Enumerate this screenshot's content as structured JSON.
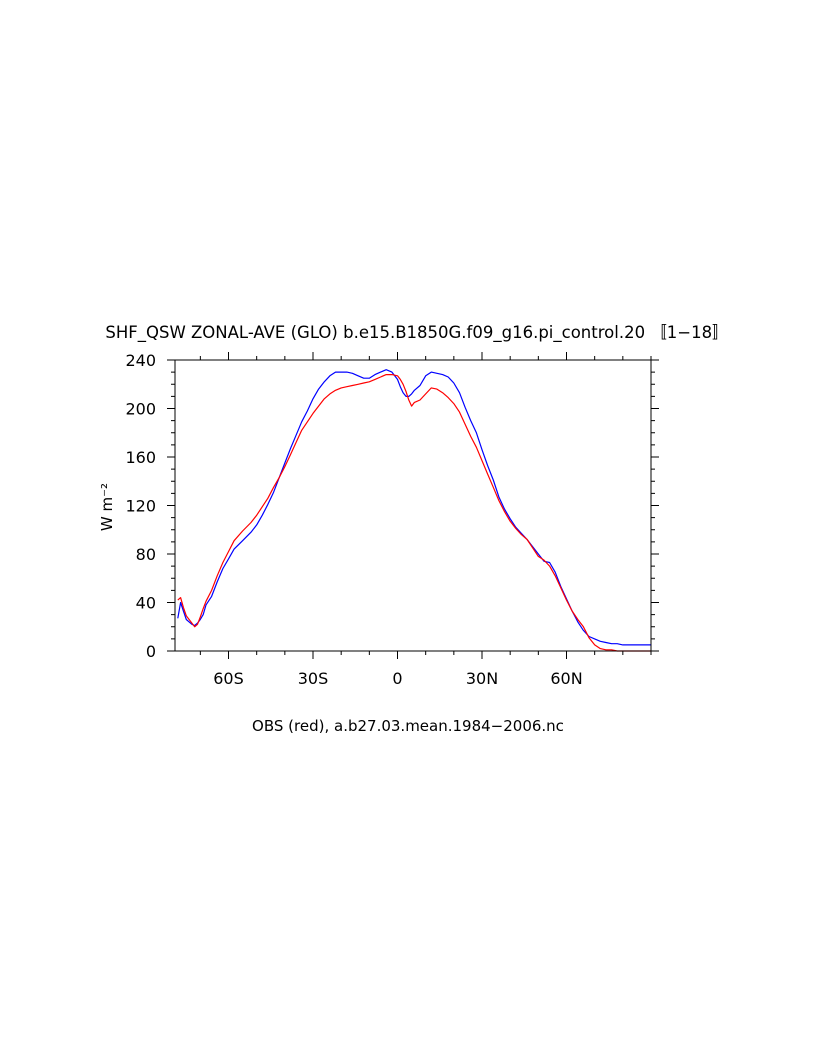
{
  "chart_data": {
    "type": "line",
    "title": "SHF_QSW ZONAL-AVE (GLO) b.e15.B1850G.f09_g16.pi_control.20 〚1−18〛",
    "xlabel": "OBS (red), a.b27.03.mean.1984−2006.nc",
    "ylabel": "W m⁻²",
    "xlim": [
      -79,
      90
    ],
    "ylim": [
      0,
      240
    ],
    "x_ticks": [
      {
        "value": -60,
        "label": "60S"
      },
      {
        "value": -30,
        "label": "30S"
      },
      {
        "value": 0,
        "label": "0"
      },
      {
        "value": 30,
        "label": "30N"
      },
      {
        "value": 60,
        "label": "60N"
      }
    ],
    "y_ticks": [
      {
        "value": 0,
        "label": "0"
      },
      {
        "value": 40,
        "label": "40"
      },
      {
        "value": 80,
        "label": "80"
      },
      {
        "value": 120,
        "label": "120"
      },
      {
        "value": 160,
        "label": "160"
      },
      {
        "value": 200,
        "label": "200"
      },
      {
        "value": 240,
        "label": "240"
      }
    ],
    "x_minor_step": 10,
    "y_minor_step": 10,
    "grid": false,
    "legend": "none",
    "series": [
      {
        "color": "#0000ff",
        "x": [
          -78,
          -77,
          -76,
          -75,
          -74,
          -73,
          -72,
          -71,
          -70,
          -69,
          -68,
          -66,
          -64,
          -62,
          -60,
          -58,
          -55,
          -52,
          -50,
          -48,
          -46,
          -44,
          -42,
          -40,
          -38,
          -36,
          -34,
          -32,
          -30,
          -28,
          -26,
          -24,
          -22,
          -20,
          -18,
          -16,
          -14,
          -12,
          -10,
          -8,
          -6,
          -4,
          -2,
          0,
          1,
          2,
          3,
          4,
          5,
          6,
          8,
          10,
          12,
          14,
          16,
          18,
          20,
          22,
          24,
          26,
          28,
          30,
          32,
          34,
          36,
          38,
          40,
          42,
          44,
          46,
          48,
          50,
          52,
          54,
          56,
          58,
          60,
          62,
          64,
          66,
          68,
          70,
          72,
          74,
          76,
          78,
          80,
          82,
          84,
          86,
          88,
          90
        ],
        "y": [
          27,
          40,
          33,
          26,
          24,
          22,
          21,
          23,
          26,
          30,
          38,
          45,
          57,
          68,
          76,
          84,
          91,
          98,
          104,
          112,
          121,
          131,
          143,
          155,
          167,
          178,
          189,
          198,
          208,
          216,
          222,
          227,
          230,
          230,
          230,
          229,
          227,
          225,
          225,
          228,
          230,
          232,
          230,
          224,
          218,
          213,
          210,
          210,
          212,
          215,
          219,
          227,
          230,
          229,
          228,
          226,
          221,
          213,
          201,
          190,
          180,
          166,
          153,
          141,
          127,
          117,
          109,
          102,
          97,
          92,
          86,
          80,
          74,
          73,
          65,
          53,
          43,
          33,
          24,
          17,
          12,
          10,
          8,
          7,
          6,
          6,
          5,
          5,
          5,
          5,
          5,
          5
        ]
      },
      {
        "color": "#ff0000",
        "x": [
          -78,
          -77,
          -76,
          -75,
          -74,
          -73,
          -72,
          -71,
          -70,
          -69,
          -68,
          -66,
          -64,
          -62,
          -60,
          -58,
          -55,
          -52,
          -50,
          -48,
          -46,
          -44,
          -42,
          -40,
          -38,
          -36,
          -34,
          -32,
          -30,
          -28,
          -26,
          -24,
          -22,
          -20,
          -18,
          -16,
          -14,
          -12,
          -10,
          -8,
          -6,
          -4,
          -2,
          0,
          1,
          2,
          3,
          4,
          5,
          6,
          8,
          10,
          12,
          14,
          16,
          18,
          20,
          22,
          24,
          26,
          28,
          30,
          32,
          34,
          36,
          38,
          40,
          42,
          44,
          46,
          48,
          50,
          52,
          54,
          56,
          58,
          60,
          62,
          64,
          66,
          68,
          70,
          72,
          74,
          76,
          78,
          80,
          82,
          84,
          86,
          88,
          90
        ],
        "y": [
          42,
          44,
          36,
          29,
          26,
          23,
          20,
          22,
          28,
          35,
          41,
          50,
          62,
          73,
          82,
          91,
          99,
          106,
          112,
          119,
          126,
          135,
          143,
          152,
          162,
          172,
          182,
          189,
          196,
          202,
          208,
          212,
          215,
          217,
          218,
          219,
          220,
          221,
          222,
          224,
          226,
          228,
          228,
          227,
          224,
          220,
          214,
          207,
          202,
          205,
          207,
          212,
          217,
          216,
          213,
          209,
          204,
          197,
          187,
          177,
          168,
          157,
          146,
          135,
          124,
          115,
          107,
          101,
          96,
          92,
          85,
          78,
          75,
          70,
          62,
          52,
          42,
          33,
          26,
          20,
          11,
          5,
          2,
          1,
          1,
          0,
          0,
          0,
          0,
          0,
          0,
          0
        ]
      }
    ]
  }
}
